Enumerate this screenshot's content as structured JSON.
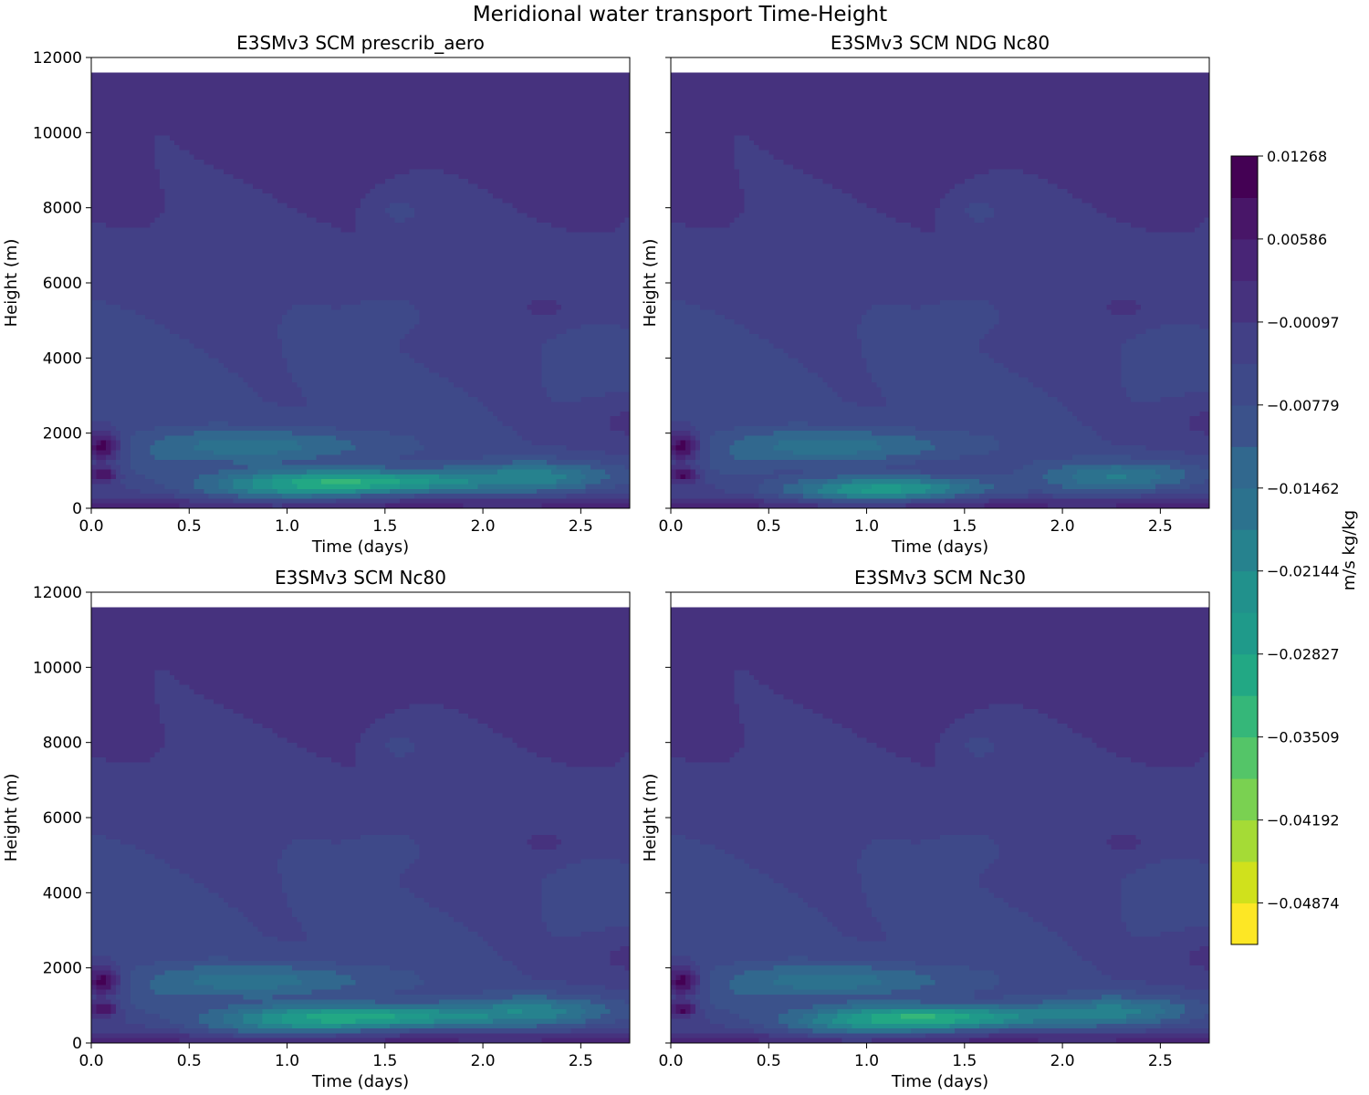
{
  "figure": {
    "suptitle": "Meridional water transport Time-Height",
    "colorbar": {
      "label": "m/s kg/kg",
      "tick_labels": [
        "0.01268",
        "0.00586",
        "−0.00097",
        "−0.00779",
        "−0.01462",
        "−0.02144",
        "−0.02827",
        "−0.03509",
        "−0.04192",
        "−0.04874"
      ],
      "tick_values": [
        0.01268,
        0.00586,
        -0.00097,
        -0.00779,
        -0.01462,
        -0.02144,
        -0.02827,
        -0.03509,
        -0.04192,
        -0.04874
      ],
      "vmin": -0.05215,
      "vmax": 0.01268,
      "n_levels": 19,
      "colors": [
        "#fde725",
        "#d0e11c",
        "#a5db36",
        "#7ad151",
        "#54c568",
        "#35b779",
        "#22a884",
        "#1f9a8a",
        "#21918c",
        "#26828e",
        "#2c728e",
        "#31688e",
        "#3b528b",
        "#3e4989",
        "#424086",
        "#46327e",
        "#482576",
        "#481668",
        "#440154"
      ]
    }
  },
  "chart_data": [
    {
      "type": "heatmap",
      "title": "E3SMv3 SCM prescrib_aero",
      "xlabel": "Time (days)",
      "ylabel": "Height (m)",
      "xlim": [
        0.0,
        2.75
      ],
      "ylim": [
        0,
        12000
      ],
      "xticks": [
        "0.0",
        "0.5",
        "1.0",
        "1.5",
        "2.0",
        "2.5"
      ],
      "yticks": [
        "0",
        "2000",
        "4000",
        "6000",
        "8000",
        "10000",
        "12000"
      ],
      "model_top_m": 11600,
      "features": {
        "jet_strength": 1.0,
        "jet_height_m": 700,
        "jet_time_d": 1.32,
        "jet_spread_d": 0.45
      }
    },
    {
      "type": "heatmap",
      "title": "E3SMv3 SCM NDG Nc80",
      "xlabel": "Time (days)",
      "ylabel": "Height (m)",
      "xlim": [
        0.0,
        2.75
      ],
      "ylim": [
        0,
        12000
      ],
      "xticks": [
        "0.0",
        "0.5",
        "1.0",
        "1.5",
        "2.0",
        "2.5"
      ],
      "yticks": [
        "0",
        "2000",
        "4000",
        "6000",
        "8000",
        "10000",
        "12000"
      ],
      "model_top_m": 11600,
      "features": {
        "jet_strength": 0.65,
        "jet_height_m": 550,
        "jet_time_d": 1.15,
        "jet_spread_d": 0.35
      }
    },
    {
      "type": "heatmap",
      "title": "E3SMv3 SCM Nc80",
      "xlabel": "Time (days)",
      "ylabel": "Height (m)",
      "xlim": [
        0.0,
        2.75
      ],
      "ylim": [
        0,
        12000
      ],
      "xticks": [
        "0.0",
        "0.5",
        "1.0",
        "1.5",
        "2.0",
        "2.5"
      ],
      "yticks": [
        "0",
        "2000",
        "4000",
        "6000",
        "8000",
        "10000",
        "12000"
      ],
      "model_top_m": 11600,
      "features": {
        "jet_strength": 0.95,
        "jet_height_m": 700,
        "jet_time_d": 1.35,
        "jet_spread_d": 0.45
      }
    },
    {
      "type": "heatmap",
      "title": "E3SMv3 SCM Nc30",
      "xlabel": "Time (days)",
      "ylabel": "Height (m)",
      "xlim": [
        0.0,
        2.75
      ],
      "ylim": [
        0,
        12000
      ],
      "xticks": [
        "0.0",
        "0.5",
        "1.0",
        "1.5",
        "2.0",
        "2.5"
      ],
      "yticks": [
        "0",
        "2000",
        "4000",
        "6000",
        "8000",
        "10000",
        "12000"
      ],
      "model_top_m": 11600,
      "features": {
        "jet_strength": 1.0,
        "jet_height_m": 680,
        "jet_time_d": 1.3,
        "jet_spread_d": 0.42
      }
    }
  ]
}
